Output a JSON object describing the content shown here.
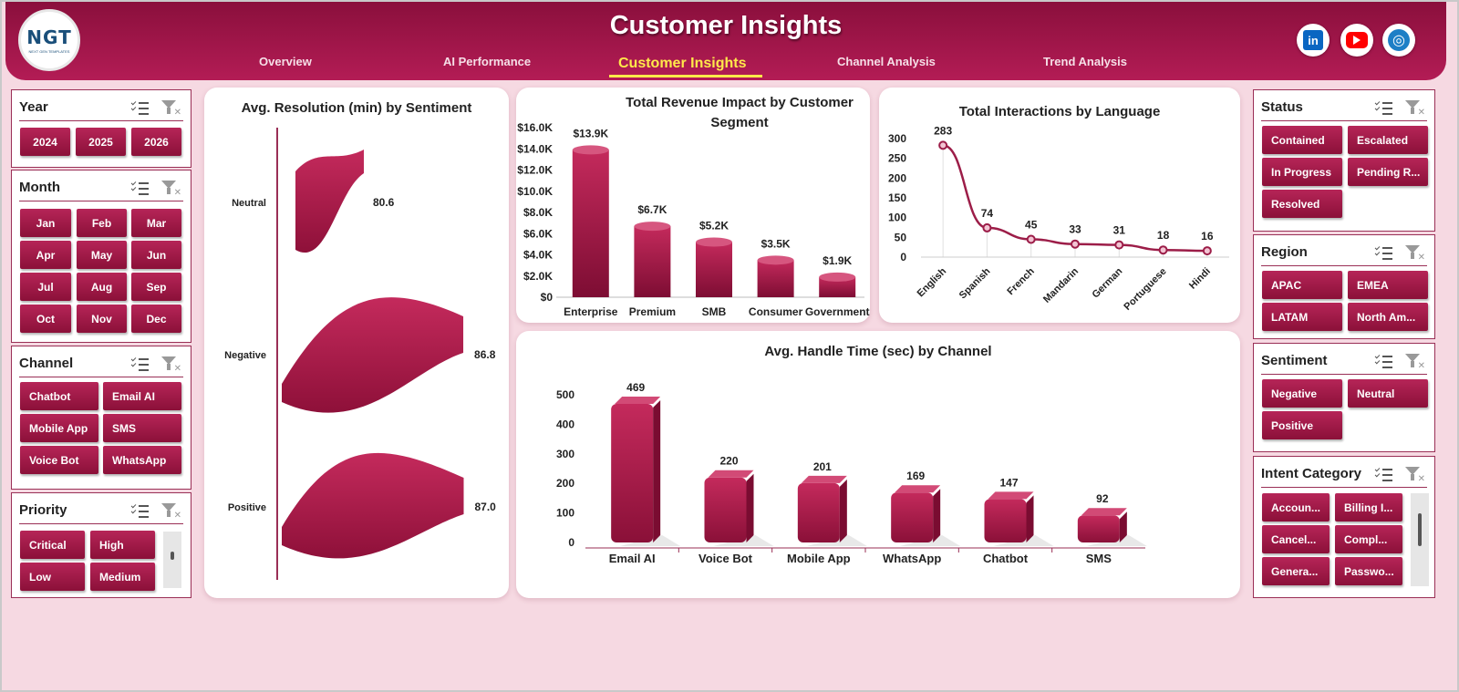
{
  "header": {
    "title": "Customer Insights",
    "logo_text": "NGT",
    "logo_sub": "NEXT GEN TEMPLATES",
    "nav": [
      {
        "label": "Overview"
      },
      {
        "label": "AI Performance"
      },
      {
        "label": "Customer Insights"
      },
      {
        "label": "Channel Analysis"
      },
      {
        "label": "Trend Analysis"
      }
    ],
    "social": {
      "linkedin": "in"
    }
  },
  "slicers": {
    "year": {
      "title": "Year",
      "items": [
        "2024",
        "2025",
        "2026"
      ]
    },
    "month": {
      "title": "Month",
      "items": [
        "Jan",
        "Feb",
        "Mar",
        "Apr",
        "May",
        "Jun",
        "Jul",
        "Aug",
        "Sep",
        "Oct",
        "Nov",
        "Dec"
      ]
    },
    "channel": {
      "title": "Channel",
      "items": [
        "Chatbot",
        "Email AI",
        "Mobile App",
        "SMS",
        "Voice Bot",
        "WhatsApp"
      ]
    },
    "priority": {
      "title": "Priority",
      "items": [
        "Critical",
        "High",
        "Low",
        "Medium"
      ]
    },
    "status": {
      "title": "Status",
      "items": [
        "Contained",
        "Escalated",
        "In Progress",
        "Pending R...",
        "Resolved"
      ]
    },
    "region": {
      "title": "Region",
      "items": [
        "APAC",
        "EMEA",
        "LATAM",
        "North Am..."
      ]
    },
    "sentiment": {
      "title": "Sentiment",
      "items": [
        "Negative",
        "Neutral",
        "Positive"
      ]
    },
    "intent": {
      "title": "Intent Category",
      "items": [
        "Accoun...",
        "Billing I...",
        "Cancel...",
        "Compl...",
        "Genera...",
        "Passwo..."
      ]
    }
  },
  "chart_data": [
    {
      "type": "bar",
      "orientation": "horizontal",
      "title": "Avg. Resolution (min) by Sentiment",
      "categories": [
        "Neutral",
        "Negative",
        "Positive"
      ],
      "values": [
        80.6,
        86.8,
        87.0
      ],
      "value_labels": [
        "80.6",
        "86.8",
        "87.0"
      ],
      "color": "#b5214f"
    },
    {
      "type": "bar",
      "title": "Total Revenue  Impact by Customer Segment",
      "categories": [
        "Enterprise",
        "Premium",
        "SMB",
        "Consumer",
        "Government"
      ],
      "values": [
        13900,
        6700,
        5200,
        3500,
        1900
      ],
      "value_labels": [
        "$13.9K",
        "$6.7K",
        "$5.2K",
        "$3.5K",
        "$1.9K"
      ],
      "ylim": [
        0,
        16000
      ],
      "yticks": [
        "$0",
        "$2.0K",
        "$4.0K",
        "$6.0K",
        "$8.0K",
        "$10.0K",
        "$12.0K",
        "$14.0K",
        "$16.0K"
      ],
      "color": "#b5214f"
    },
    {
      "type": "line",
      "title": "Total Interactions by Language",
      "categories": [
        "English",
        "Spanish",
        "French",
        "Mandarin",
        "German",
        "Portuguese",
        "Hindi"
      ],
      "values": [
        283,
        74,
        45,
        33,
        31,
        18,
        16
      ],
      "ylim": [
        0,
        300
      ],
      "yticks": [
        "0",
        "50",
        "100",
        "150",
        "200",
        "250",
        "300"
      ],
      "color": "#9c1d48"
    },
    {
      "type": "bar",
      "title": "Avg. Handle Time (sec) by Channel",
      "categories": [
        "Email AI",
        "Voice Bot",
        "Mobile App",
        "WhatsApp",
        "Chatbot",
        "SMS"
      ],
      "values": [
        469,
        220,
        201,
        169,
        147,
        92
      ],
      "ylim": [
        0,
        500
      ],
      "yticks": [
        "0",
        "100",
        "200",
        "300",
        "400",
        "500"
      ],
      "color": "#b5214f"
    }
  ]
}
